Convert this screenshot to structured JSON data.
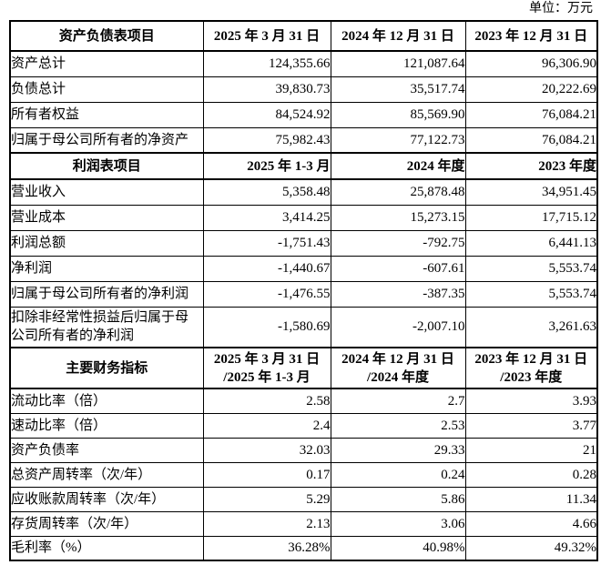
{
  "unit_label": "单位：万元",
  "colors": {
    "background": "#ffffff",
    "text": "#000000",
    "border": "#000000"
  },
  "table": {
    "sections": [
      {
        "header": {
          "label": "资产负债表项目",
          "period_align": "center",
          "periods": [
            "2025 年 3 月 31 日",
            "2024 年 12 月 31 日",
            "2023 年 12 月 31 日"
          ]
        },
        "rows": [
          {
            "label": "资产总计",
            "values": [
              "124,355.66",
              "121,087.64",
              "96,306.90"
            ]
          },
          {
            "label": "负债总计",
            "values": [
              "39,830.73",
              "35,517.74",
              "20,222.69"
            ]
          },
          {
            "label": "所有者权益",
            "values": [
              "84,524.92",
              "85,569.90",
              "76,084.21"
            ]
          },
          {
            "label": "归属于母公司所有者的净资产",
            "values": [
              "75,982.43",
              "77,122.73",
              "76,084.21"
            ]
          }
        ]
      },
      {
        "header": {
          "label": "利润表项目",
          "period_align": "right",
          "periods": [
            "2025 年 1-3 月",
            "2024 年度",
            "2023 年度"
          ]
        },
        "rows": [
          {
            "label": "营业收入",
            "values": [
              "5,358.48",
              "25,878.48",
              "34,951.45"
            ]
          },
          {
            "label": "营业成本",
            "values": [
              "3,414.25",
              "15,273.15",
              "17,715.12"
            ]
          },
          {
            "label": "利润总额",
            "values": [
              "-1,751.43",
              "-792.75",
              "6,441.13"
            ]
          },
          {
            "label": "净利润",
            "values": [
              "-1,440.67",
              "-607.61",
              "5,553.74"
            ]
          },
          {
            "label": "归属于母公司所有者的净利润",
            "values": [
              "-1,476.55",
              "-387.35",
              "5,553.74"
            ]
          },
          {
            "label": "扣除非经常性损益后归属于母\n公司所有者的净利润",
            "values": [
              "-1,580.69",
              "-2,007.10",
              "3,261.63"
            ]
          }
        ]
      },
      {
        "header": {
          "label": "主要财务指标",
          "period_align": "center",
          "periods": [
            "2025 年 3 月 31 日\n/2025 年 1-3 月",
            "2024 年 12 月 31 日\n/2024 年度",
            "2023 年 12 月 31 日\n/2023 年度"
          ]
        },
        "rows": [
          {
            "label": "流动比率（倍）",
            "values": [
              "2.58",
              "2.7",
              "3.93"
            ]
          },
          {
            "label": "速动比率（倍）",
            "values": [
              "2.4",
              "2.53",
              "3.77"
            ]
          },
          {
            "label": "资产负债率",
            "values": [
              "32.03",
              "29.33",
              "21"
            ]
          },
          {
            "label": "总资产周转率（次/年）",
            "values": [
              "0.17",
              "0.24",
              "0.28"
            ]
          },
          {
            "label": "应收账款周转率（次/年）",
            "values": [
              "5.29",
              "5.86",
              "11.34"
            ]
          },
          {
            "label": "存货周转率（次/年）",
            "values": [
              "2.13",
              "3.06",
              "4.66"
            ]
          },
          {
            "label": "毛利率（%）",
            "values": [
              "36.28%",
              "40.98%",
              "49.32%"
            ]
          }
        ]
      }
    ]
  }
}
